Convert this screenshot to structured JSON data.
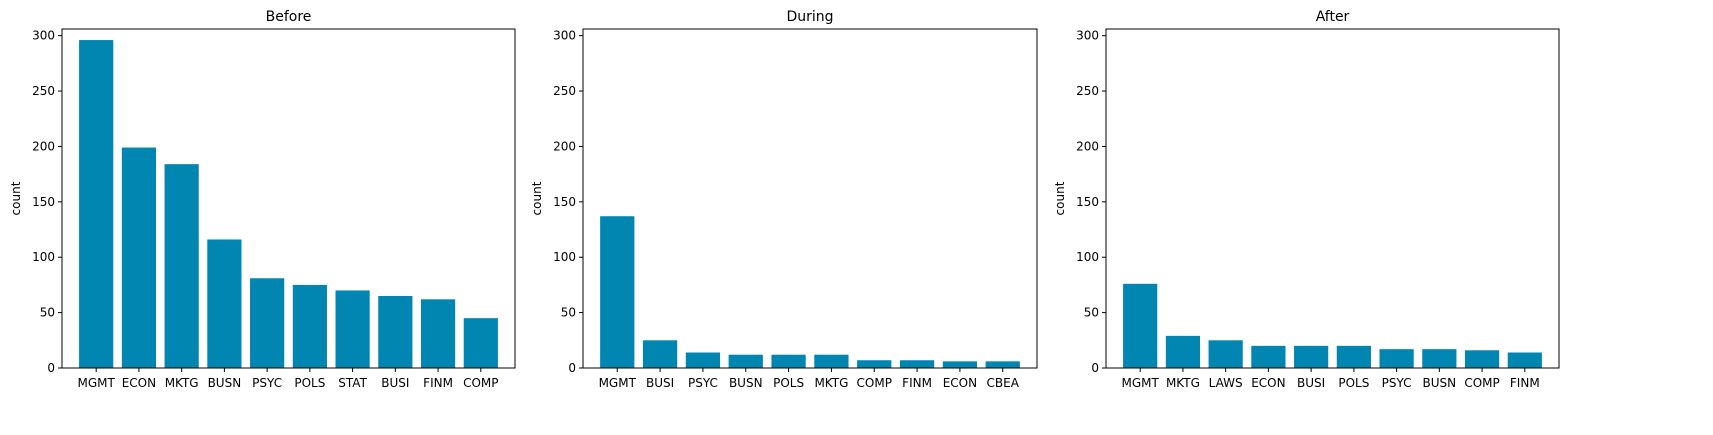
{
  "colors": {
    "bar": "#0086b0",
    "axis": "#000000",
    "background": "#ffffff"
  },
  "chart_data": [
    {
      "type": "bar",
      "title": "Before",
      "xlabel": "",
      "ylabel": "count",
      "ylim": [
        0,
        306
      ],
      "yticks": [
        0,
        50,
        100,
        150,
        200,
        250,
        300
      ],
      "categories": [
        "MGMT",
        "ECON",
        "MKTG",
        "BUSN",
        "PSYC",
        "POLS",
        "STAT",
        "BUSI",
        "FINM",
        "COMP"
      ],
      "values": [
        296,
        199,
        184,
        116,
        81,
        75,
        70,
        65,
        62,
        45
      ]
    },
    {
      "type": "bar",
      "title": "During",
      "xlabel": "",
      "ylabel": "count",
      "ylim": [
        0,
        306
      ],
      "yticks": [
        0,
        50,
        100,
        150,
        200,
        250,
        300
      ],
      "categories": [
        "MGMT",
        "BUSI",
        "PSYC",
        "BUSN",
        "POLS",
        "MKTG",
        "COMP",
        "FINM",
        "ECON",
        "CBEA"
      ],
      "values": [
        137,
        25,
        14,
        12,
        12,
        12,
        7,
        7,
        6,
        6
      ]
    },
    {
      "type": "bar",
      "title": "After",
      "xlabel": "",
      "ylabel": "count",
      "ylim": [
        0,
        306
      ],
      "yticks": [
        0,
        50,
        100,
        150,
        200,
        250,
        300
      ],
      "categories": [
        "MGMT",
        "MKTG",
        "LAWS",
        "ECON",
        "BUSI",
        "POLS",
        "PSYC",
        "BUSN",
        "COMP",
        "FINM"
      ],
      "values": [
        76,
        29,
        25,
        20,
        20,
        20,
        17,
        17,
        16,
        14
      ]
    }
  ]
}
